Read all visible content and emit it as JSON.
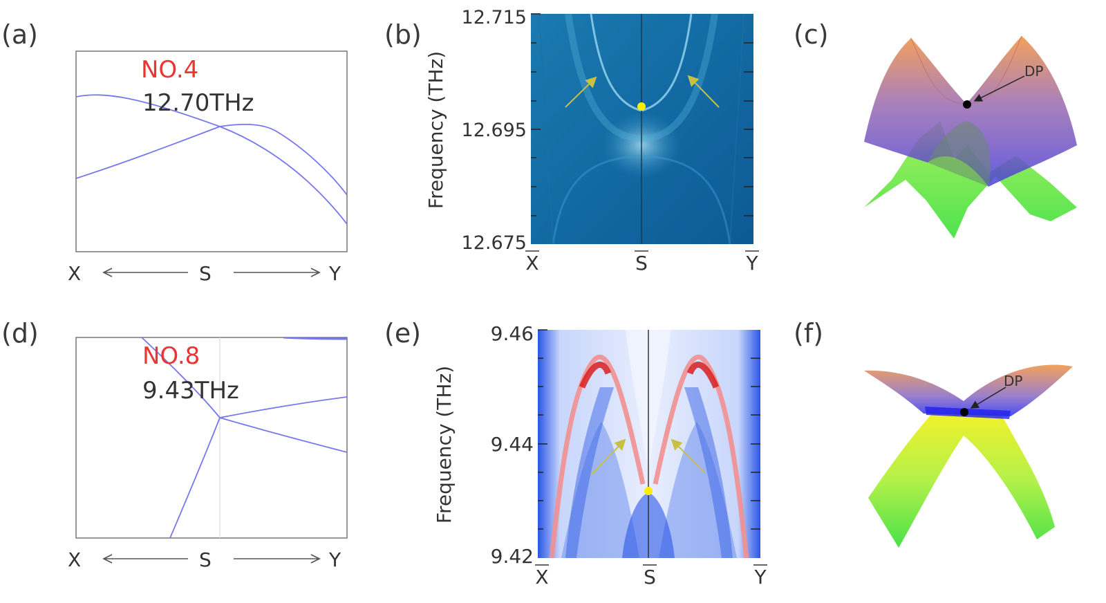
{
  "panels": {
    "a": {
      "label": "(a)",
      "number": "NO.4",
      "freq": "12.70THz",
      "axis": {
        "left": "X",
        "mid": "S",
        "right": "Y"
      }
    },
    "b": {
      "label": "(b)",
      "ylabel": "Frequency (THz)",
      "yticks": [
        "12.715",
        "12.695",
        "12.675"
      ],
      "xticks": [
        "X",
        "S",
        "Y"
      ]
    },
    "c": {
      "label": "(c)",
      "dp": "DP"
    },
    "d": {
      "label": "(d)",
      "number": "NO.8",
      "freq": "9.43THz",
      "axis": {
        "left": "X",
        "mid": "S",
        "right": "Y"
      }
    },
    "e": {
      "label": "(e)",
      "ylabel": "Frequency (THz)",
      "yticks": [
        "9.46",
        "9.44",
        "9.42"
      ],
      "xticks": [
        "X",
        "S",
        "Y"
      ]
    },
    "f": {
      "label": "(f)",
      "dp": "DP"
    }
  },
  "colors": {
    "red_label": "#ee3333",
    "band_line": "#7777ee",
    "arrow": "#c8c040",
    "dirac_point": "#ffee00"
  }
}
